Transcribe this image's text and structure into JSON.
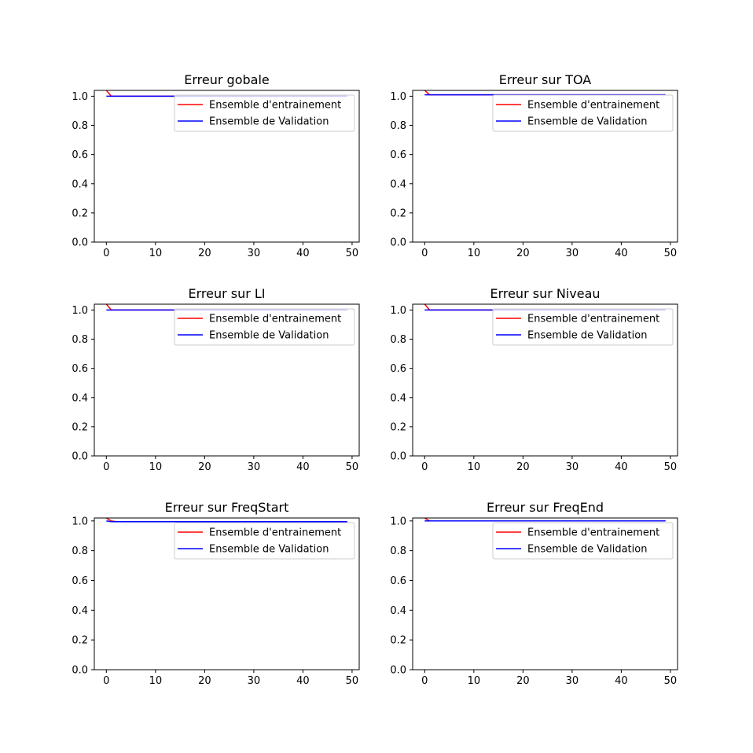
{
  "colors": {
    "train": "#ff0000",
    "validation": "#0000ff"
  },
  "chart_data": [
    {
      "type": "line",
      "title": "Erreur gobale",
      "xlabel": "",
      "ylabel": "",
      "xlim": [
        -2.45,
        51.45
      ],
      "ylim": [
        0.0,
        1.04
      ],
      "xticks": [
        0,
        10,
        20,
        30,
        40,
        50
      ],
      "yticks": [
        0.0,
        0.2,
        0.4,
        0.6,
        0.8,
        1.0
      ],
      "grid": false,
      "legend_position": "upper right",
      "series": [
        {
          "name": "Ensemble d'entrainement",
          "color": "#ff0000",
          "x_start": 0,
          "x_end": 49,
          "values_head": [
            1.04,
            1.0
          ],
          "tail_value": 1.0
        },
        {
          "name": "Ensemble de Validation",
          "color": "#0000ff",
          "x_start": 0,
          "x_end": 49,
          "values_head": [
            1.0
          ],
          "tail_value": 1.0
        }
      ]
    },
    {
      "type": "line",
      "title": "Erreur sur TOA",
      "xlabel": "",
      "ylabel": "",
      "xlim": [
        -2.45,
        51.45
      ],
      "ylim": [
        0.0,
        1.04
      ],
      "xticks": [
        0,
        10,
        20,
        30,
        40,
        50
      ],
      "yticks": [
        0.0,
        0.2,
        0.4,
        0.6,
        0.8,
        1.0
      ],
      "grid": false,
      "legend_position": "upper right",
      "series": [
        {
          "name": "Ensemble d'entrainement",
          "color": "#ff0000",
          "x_start": 0,
          "x_end": 49,
          "values_head": [
            1.04,
            1.01
          ],
          "tail_value": 1.01
        },
        {
          "name": "Ensemble de Validation",
          "color": "#0000ff",
          "x_start": 0,
          "x_end": 49,
          "values_head": [
            1.01
          ],
          "tail_value": 1.01
        }
      ]
    },
    {
      "type": "line",
      "title": "Erreur sur LI",
      "xlabel": "",
      "ylabel": "",
      "xlim": [
        -2.45,
        51.45
      ],
      "ylim": [
        0.0,
        1.04
      ],
      "xticks": [
        0,
        10,
        20,
        30,
        40,
        50
      ],
      "yticks": [
        0.0,
        0.2,
        0.4,
        0.6,
        0.8,
        1.0
      ],
      "grid": false,
      "legend_position": "upper right",
      "series": [
        {
          "name": "Ensemble d'entrainement",
          "color": "#ff0000",
          "x_start": 0,
          "x_end": 49,
          "values_head": [
            1.04,
            1.0
          ],
          "tail_value": 1.0
        },
        {
          "name": "Ensemble de Validation",
          "color": "#0000ff",
          "x_start": 0,
          "x_end": 49,
          "values_head": [
            1.0
          ],
          "tail_value": 1.0
        }
      ]
    },
    {
      "type": "line",
      "title": "Erreur sur Niveau",
      "xlabel": "",
      "ylabel": "",
      "xlim": [
        -2.45,
        51.45
      ],
      "ylim": [
        0.0,
        1.04
      ],
      "xticks": [
        0,
        10,
        20,
        30,
        40,
        50
      ],
      "yticks": [
        0.0,
        0.2,
        0.4,
        0.6,
        0.8,
        1.0
      ],
      "grid": false,
      "legend_position": "upper right",
      "series": [
        {
          "name": "Ensemble d'entrainement",
          "color": "#ff0000",
          "x_start": 0,
          "x_end": 49,
          "values_head": [
            1.04,
            1.0
          ],
          "tail_value": 1.0
        },
        {
          "name": "Ensemble de Validation",
          "color": "#0000ff",
          "x_start": 0,
          "x_end": 49,
          "values_head": [
            1.0
          ],
          "tail_value": 1.0
        }
      ]
    },
    {
      "type": "line",
      "title": "Erreur sur FreqStart",
      "xlabel": "",
      "ylabel": "",
      "xlim": [
        -2.45,
        51.45
      ],
      "ylim": [
        0.0,
        1.02
      ],
      "xticks": [
        0,
        10,
        20,
        30,
        40,
        50
      ],
      "yticks": [
        0.0,
        0.2,
        0.4,
        0.6,
        0.8,
        1.0
      ],
      "grid": false,
      "legend_position": "upper right",
      "series": [
        {
          "name": "Ensemble d'entrainement",
          "color": "#ff0000",
          "x_start": 0,
          "x_end": 49,
          "values_head": [
            1.02,
            1.0
          ],
          "tail_value": 0.995
        },
        {
          "name": "Ensemble de Validation",
          "color": "#0000ff",
          "x_start": 0,
          "x_end": 49,
          "values_head": [
            1.0
          ],
          "tail_value": 0.995
        }
      ]
    },
    {
      "type": "line",
      "title": "Erreur sur FreqEnd",
      "xlabel": "",
      "ylabel": "",
      "xlim": [
        -2.45,
        51.45
      ],
      "ylim": [
        0.0,
        1.02
      ],
      "xticks": [
        0,
        10,
        20,
        30,
        40,
        50
      ],
      "yticks": [
        0.0,
        0.2,
        0.4,
        0.6,
        0.8,
        1.0
      ],
      "grid": false,
      "legend_position": "upper right",
      "series": [
        {
          "name": "Ensemble d'entrainement",
          "color": "#ff0000",
          "x_start": 0,
          "x_end": 49,
          "values_head": [
            1.02,
            1.0
          ],
          "tail_value": 1.0
        },
        {
          "name": "Ensemble de Validation",
          "color": "#0000ff",
          "x_start": 0,
          "x_end": 49,
          "values_head": [
            1.0
          ],
          "tail_value": 1.0
        }
      ]
    }
  ]
}
